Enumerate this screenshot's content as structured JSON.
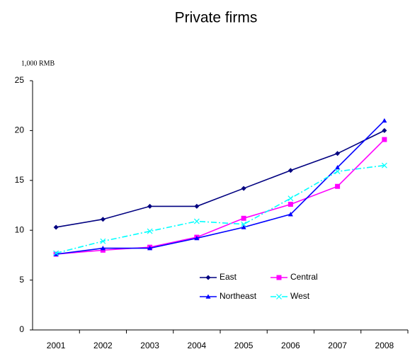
{
  "chart_data": {
    "type": "line",
    "title": "Private firms",
    "y_axis_label": "1,000 RMB",
    "categories": [
      "2001",
      "2002",
      "2003",
      "2004",
      "2005",
      "2006",
      "2007",
      "2008"
    ],
    "series": [
      {
        "name": "East",
        "color": "#000080",
        "marker": "diamond",
        "line_style": "solid",
        "values": [
          10.3,
          11.1,
          12.4,
          12.4,
          14.2,
          16.0,
          17.7,
          20.0
        ]
      },
      {
        "name": "Central",
        "color": "#ff00ff",
        "marker": "square",
        "line_style": "solid",
        "values": [
          7.6,
          8.0,
          8.3,
          9.3,
          11.2,
          12.6,
          14.4,
          19.1
        ]
      },
      {
        "name": "Northeast",
        "color": "#0000ff",
        "marker": "triangle",
        "line_style": "solid",
        "values": [
          7.6,
          8.2,
          8.2,
          9.2,
          10.3,
          11.6,
          16.3,
          21.0
        ]
      },
      {
        "name": "West",
        "color": "#00ffff",
        "marker": "x",
        "line_style": "dashdot",
        "values": [
          7.7,
          8.9,
          9.9,
          10.9,
          10.6,
          13.2,
          15.9,
          16.5
        ]
      }
    ],
    "ylim": [
      0,
      25
    ],
    "yticks": [
      0,
      5,
      10,
      15,
      20,
      25
    ],
    "grid": false,
    "legend_position": "lower center"
  }
}
